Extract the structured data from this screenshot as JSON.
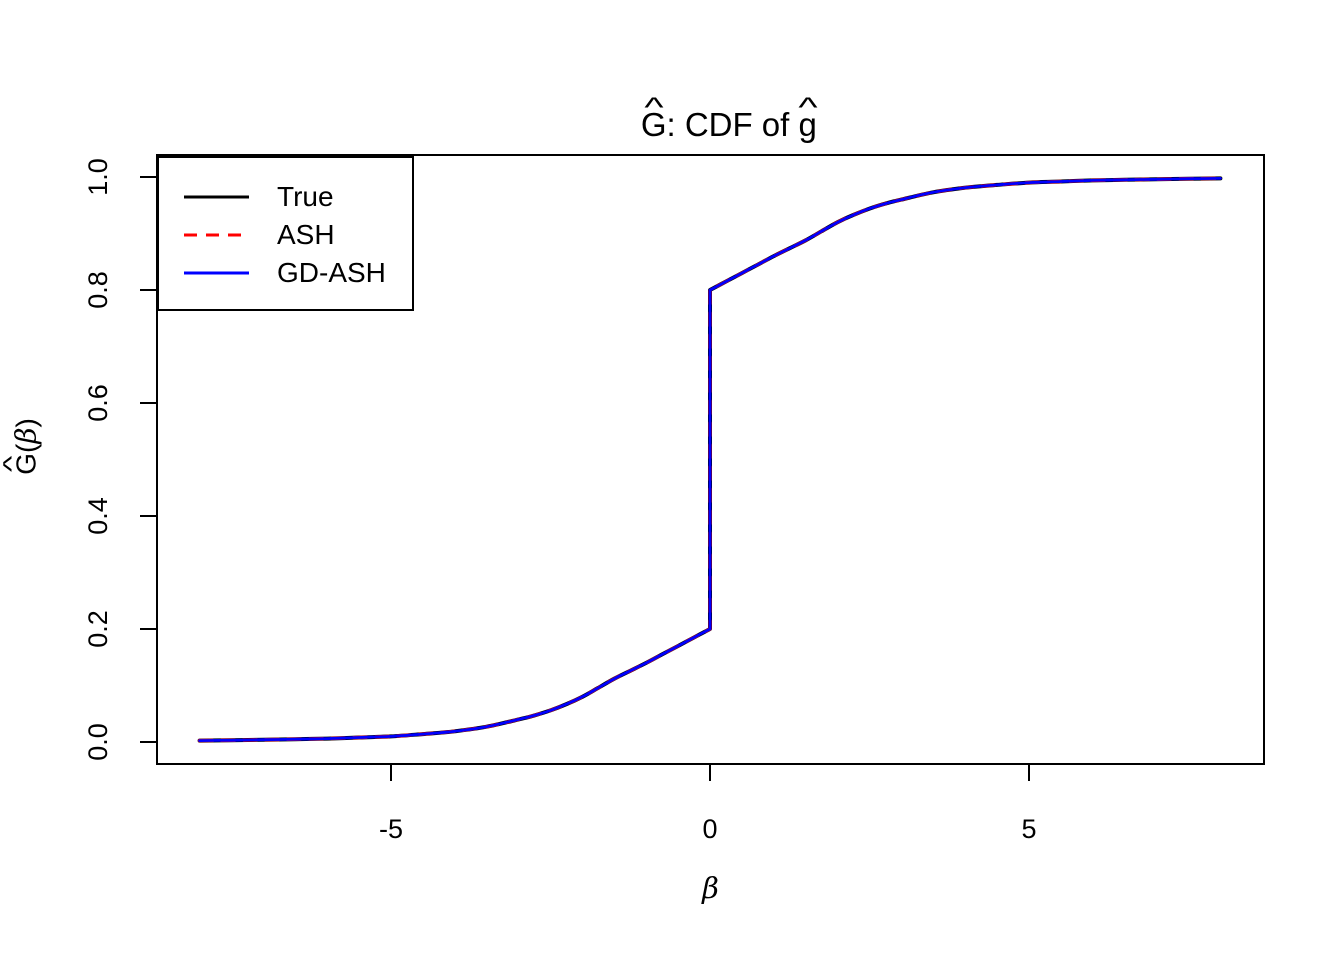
{
  "title": {
    "hat": "^",
    "part1": "G",
    "separator": ": CDF of ",
    "part2": "g",
    "full_text": "Ĝ: CDF of ĝ"
  },
  "axes": {
    "x": {
      "label": "β",
      "tick_labels": [
        "-5",
        "0",
        "5"
      ],
      "tick_values": [
        -5,
        0,
        5
      ],
      "range": [
        -8.7,
        8.7
      ]
    },
    "y": {
      "label_hat": "^",
      "label_letter": "G",
      "label_open": "(",
      "label_beta": "β",
      "label_close": ")",
      "full_label": "Ĝ(β)",
      "tick_labels": [
        "0.0",
        "0.2",
        "0.4",
        "0.6",
        "0.8",
        "1.0"
      ],
      "tick_values": [
        0,
        0.2,
        0.4,
        0.6,
        0.8,
        1.0
      ],
      "range": [
        -0.04,
        1.04
      ]
    }
  },
  "legend": {
    "items": [
      {
        "label": "True",
        "color": "#000000",
        "linetype": "solid"
      },
      {
        "label": "ASH",
        "color": "#FF0000",
        "linetype": "dashed"
      },
      {
        "label": "GD-ASH",
        "color": "#0000FF",
        "linetype": "solid"
      }
    ]
  },
  "chart_data": {
    "type": "line",
    "title": "Ĝ: CDF of ĝ",
    "xlabel": "β",
    "ylabel": "Ĝ(β)",
    "xlim": [
      -8.7,
      8.7
    ],
    "ylim": [
      -0.04,
      1.04
    ],
    "x_ticks": [
      -5,
      0,
      5
    ],
    "y_ticks": [
      0,
      0.2,
      0.4,
      0.6,
      0.8,
      1.0
    ],
    "grid": false,
    "legend_position": "topleft",
    "note": "All three CDF curves (True, ASH, GD-ASH) coincide; the CDF has a point mass of 0.6 at beta=0, jumping from 0.2 to 0.8.",
    "series": [
      {
        "name": "True",
        "color": "#000000",
        "linetype": "solid",
        "points": "shared_points"
      },
      {
        "name": "ASH",
        "color": "#FF0000",
        "linetype": "dashed",
        "points": "shared_points"
      },
      {
        "name": "GD-ASH",
        "color": "#0000FF",
        "linetype": "solid",
        "points": "shared_points"
      }
    ],
    "shared_points": [
      [
        -8.0,
        0.0025
      ],
      [
        -7.5,
        0.003
      ],
      [
        -7.0,
        0.004
      ],
      [
        -6.5,
        0.005
      ],
      [
        -6.0,
        0.006
      ],
      [
        -5.5,
        0.008
      ],
      [
        -5.0,
        0.01
      ],
      [
        -4.5,
        0.014
      ],
      [
        -4.0,
        0.019
      ],
      [
        -3.5,
        0.027
      ],
      [
        -3.0,
        0.04
      ],
      [
        -2.75,
        0.047
      ],
      [
        -2.5,
        0.056
      ],
      [
        -2.25,
        0.067
      ],
      [
        -2.0,
        0.08
      ],
      [
        -1.75,
        0.096
      ],
      [
        -1.5,
        0.112
      ],
      [
        -1.25,
        0.126
      ],
      [
        -1.0,
        0.14
      ],
      [
        -0.75,
        0.155
      ],
      [
        -0.5,
        0.17
      ],
      [
        -0.25,
        0.185
      ],
      [
        0.0,
        0.2
      ],
      [
        0.0,
        0.8
      ],
      [
        0.25,
        0.815
      ],
      [
        0.5,
        0.83
      ],
      [
        0.75,
        0.845
      ],
      [
        1.0,
        0.86
      ],
      [
        1.25,
        0.874
      ],
      [
        1.5,
        0.888
      ],
      [
        1.75,
        0.904
      ],
      [
        2.0,
        0.92
      ],
      [
        2.25,
        0.933
      ],
      [
        2.5,
        0.944
      ],
      [
        2.75,
        0.953
      ],
      [
        3.0,
        0.96
      ],
      [
        3.5,
        0.973
      ],
      [
        4.0,
        0.981
      ],
      [
        4.5,
        0.986
      ],
      [
        5.0,
        0.99
      ],
      [
        5.5,
        0.992
      ],
      [
        6.0,
        0.994
      ],
      [
        6.5,
        0.995
      ],
      [
        7.0,
        0.996
      ],
      [
        7.5,
        0.997
      ],
      [
        8.0,
        0.9975
      ]
    ]
  }
}
